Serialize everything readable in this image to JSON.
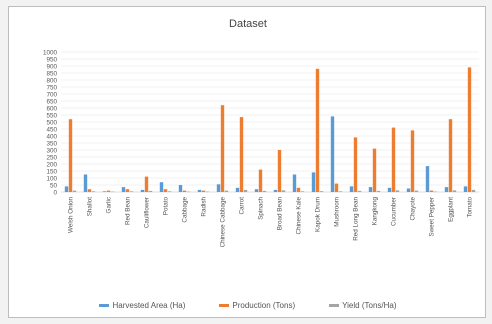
{
  "chart_data": {
    "type": "bar",
    "title": "Dataset",
    "xlabel": "",
    "ylabel": "",
    "ylim": [
      0,
      1000
    ],
    "yticks": [
      0,
      50,
      100,
      150,
      200,
      250,
      300,
      350,
      400,
      450,
      500,
      550,
      600,
      650,
      700,
      750,
      800,
      850,
      900,
      950,
      1000
    ],
    "grid": true,
    "legend_position": "bottom",
    "categories": [
      "Welsh Onion",
      "Shallot",
      "Garlic",
      "Red Bean",
      "Cauliflower",
      "Potato",
      "Cabbage",
      "Radish",
      "Chinese Cabbage",
      "Carrot",
      "Spinach",
      "Broad Bean",
      "Chinese Kale",
      "Kapok Drum",
      "Mushroom",
      "Red Long Bean",
      "Kangkong",
      "Cucumber",
      "Chayote",
      "Sweet Pepper",
      "Eggplant",
      "Tomato"
    ],
    "series": [
      {
        "name": "Harvested Area (Ha)",
        "color": "#5b9bd5",
        "values": [
          40,
          125,
          5,
          35,
          15,
          70,
          50,
          15,
          55,
          30,
          20,
          15,
          125,
          140,
          540,
          40,
          35,
          30,
          25,
          185,
          35,
          40
        ]
      },
      {
        "name": "Production (Tons)",
        "color": "#ed7d31",
        "values": [
          520,
          20,
          10,
          20,
          110,
          20,
          10,
          10,
          620,
          535,
          160,
          300,
          30,
          880,
          60,
          390,
          310,
          460,
          440,
          10,
          520,
          890
        ]
      },
      {
        "name": "Yield (Tons/Ha)",
        "color": "#a5a5a5",
        "values": [
          10,
          5,
          3,
          5,
          8,
          5,
          3,
          3,
          10,
          15,
          8,
          12,
          5,
          6,
          5,
          8,
          8,
          12,
          10,
          3,
          12,
          15
        ]
      }
    ]
  }
}
